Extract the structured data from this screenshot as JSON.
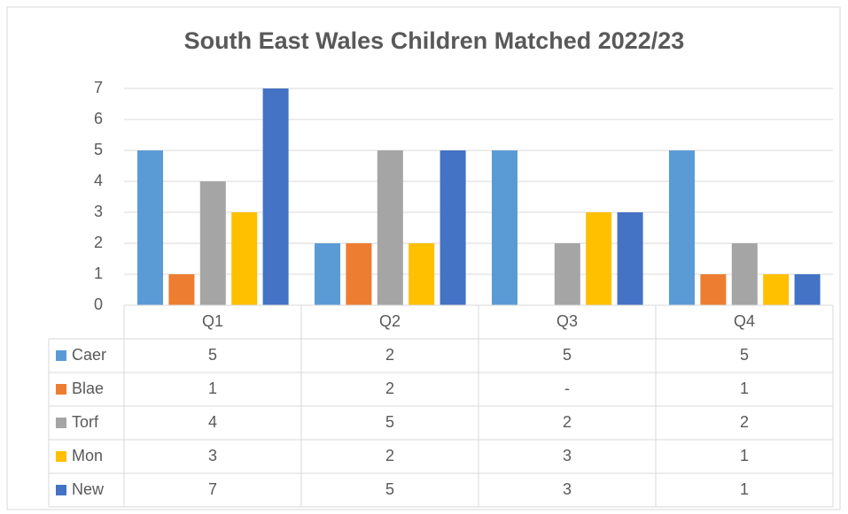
{
  "chart_data": {
    "type": "bar",
    "title": "South East Wales Children Matched 2022/23",
    "categories": [
      "Q1",
      "Q2",
      "Q3",
      "Q4"
    ],
    "series": [
      {
        "name": "Caer",
        "color": "#5b9bd5",
        "values": [
          5,
          2,
          5,
          5
        ]
      },
      {
        "name": "Blae",
        "color": "#ed7d31",
        "values": [
          1,
          2,
          0,
          1
        ],
        "value_labels": [
          "1",
          "2",
          "-",
          "1"
        ]
      },
      {
        "name": "Torf",
        "color": "#a5a5a5",
        "values": [
          4,
          5,
          2,
          2
        ]
      },
      {
        "name": "Mon",
        "color": "#ffc000",
        "values": [
          3,
          2,
          3,
          1
        ]
      },
      {
        "name": "New",
        "color": "#4472c4",
        "values": [
          7,
          5,
          3,
          1
        ]
      }
    ],
    "ylim": [
      0,
      7
    ],
    "yticks": [
      0,
      1,
      2,
      3,
      4,
      5,
      6,
      7
    ],
    "grid": true
  }
}
